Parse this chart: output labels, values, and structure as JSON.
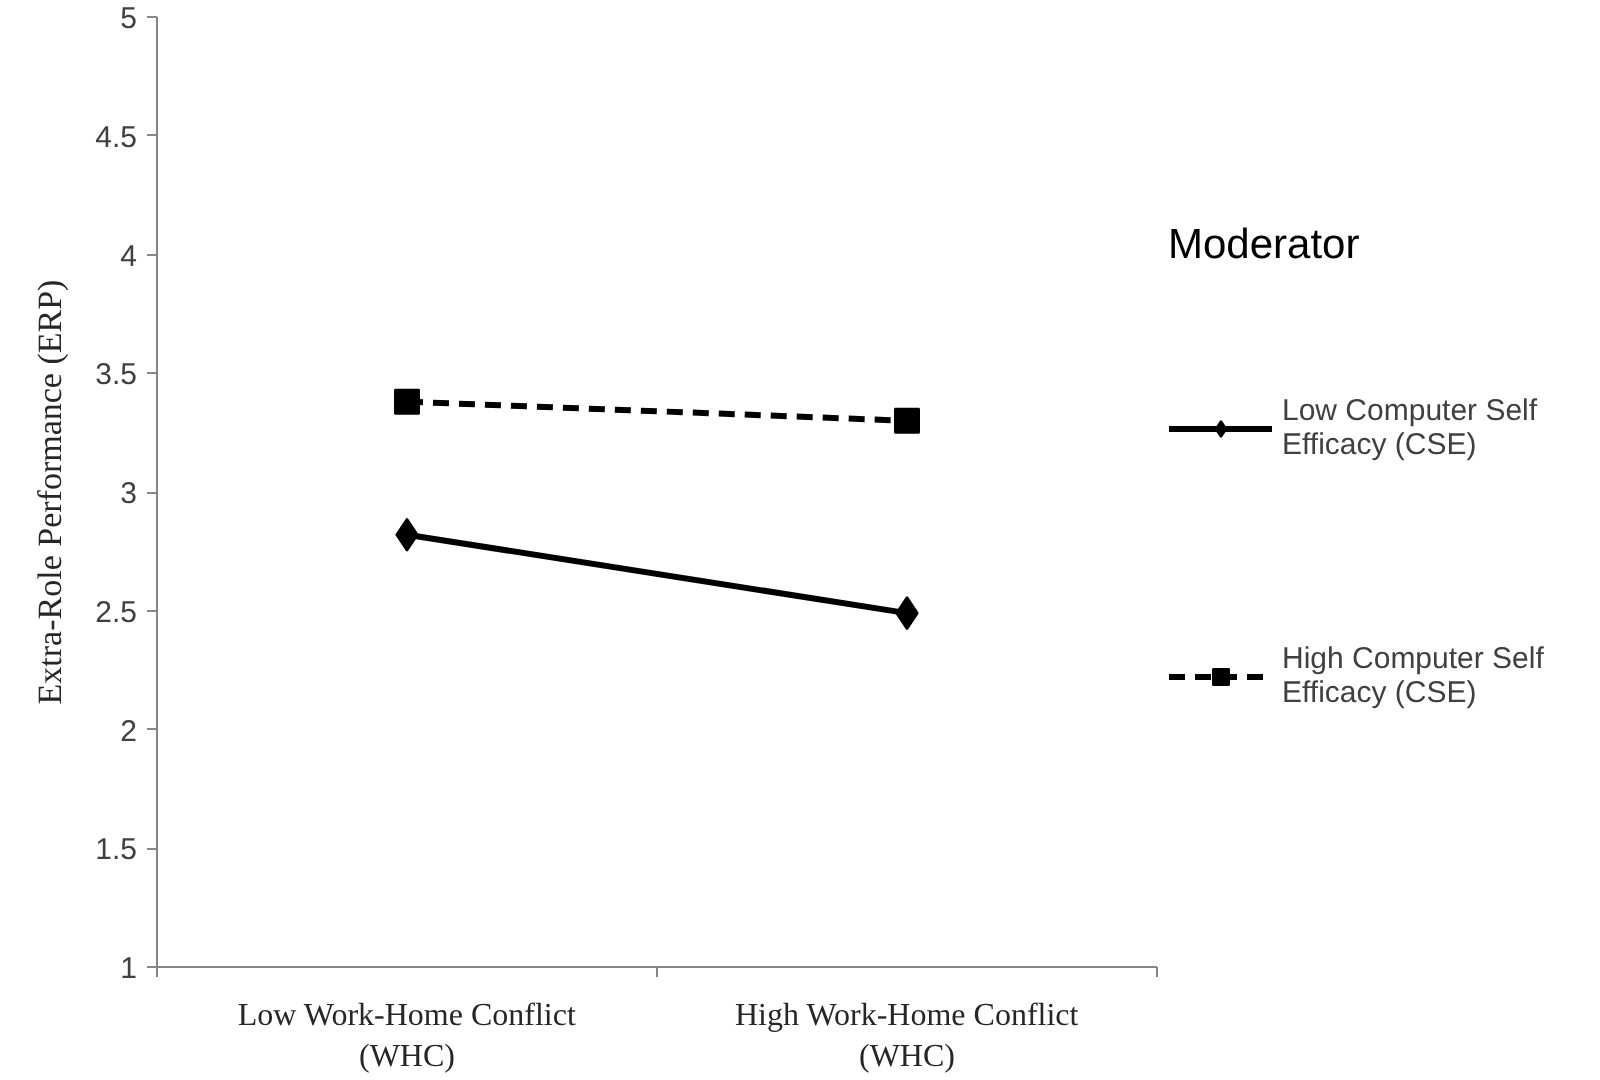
{
  "chart_data": {
    "type": "line",
    "ylabel": "Extra-Role Performance (ERP)",
    "categories": [
      "Low Work-Home Conflict (WHC)",
      "High Work-Home Conflict (WHC)"
    ],
    "series": [
      {
        "name": "Low Computer Self Efficacy (CSE)",
        "color": "#000000",
        "values": [
          2.82,
          2.49
        ],
        "marker": "diamond",
        "line_style": "solid"
      },
      {
        "name": "High Computer Self Efficacy (CSE)",
        "color": "#000000",
        "values": [
          3.38,
          3.3
        ],
        "marker": "square",
        "line_style": "dashed"
      }
    ],
    "ylim": [
      1,
      5
    ],
    "yticks": [
      1,
      1.5,
      2,
      2.5,
      3,
      3.5,
      4,
      4.5,
      5
    ],
    "grid": false,
    "legend": "right",
    "legend_title": "Moderator"
  }
}
